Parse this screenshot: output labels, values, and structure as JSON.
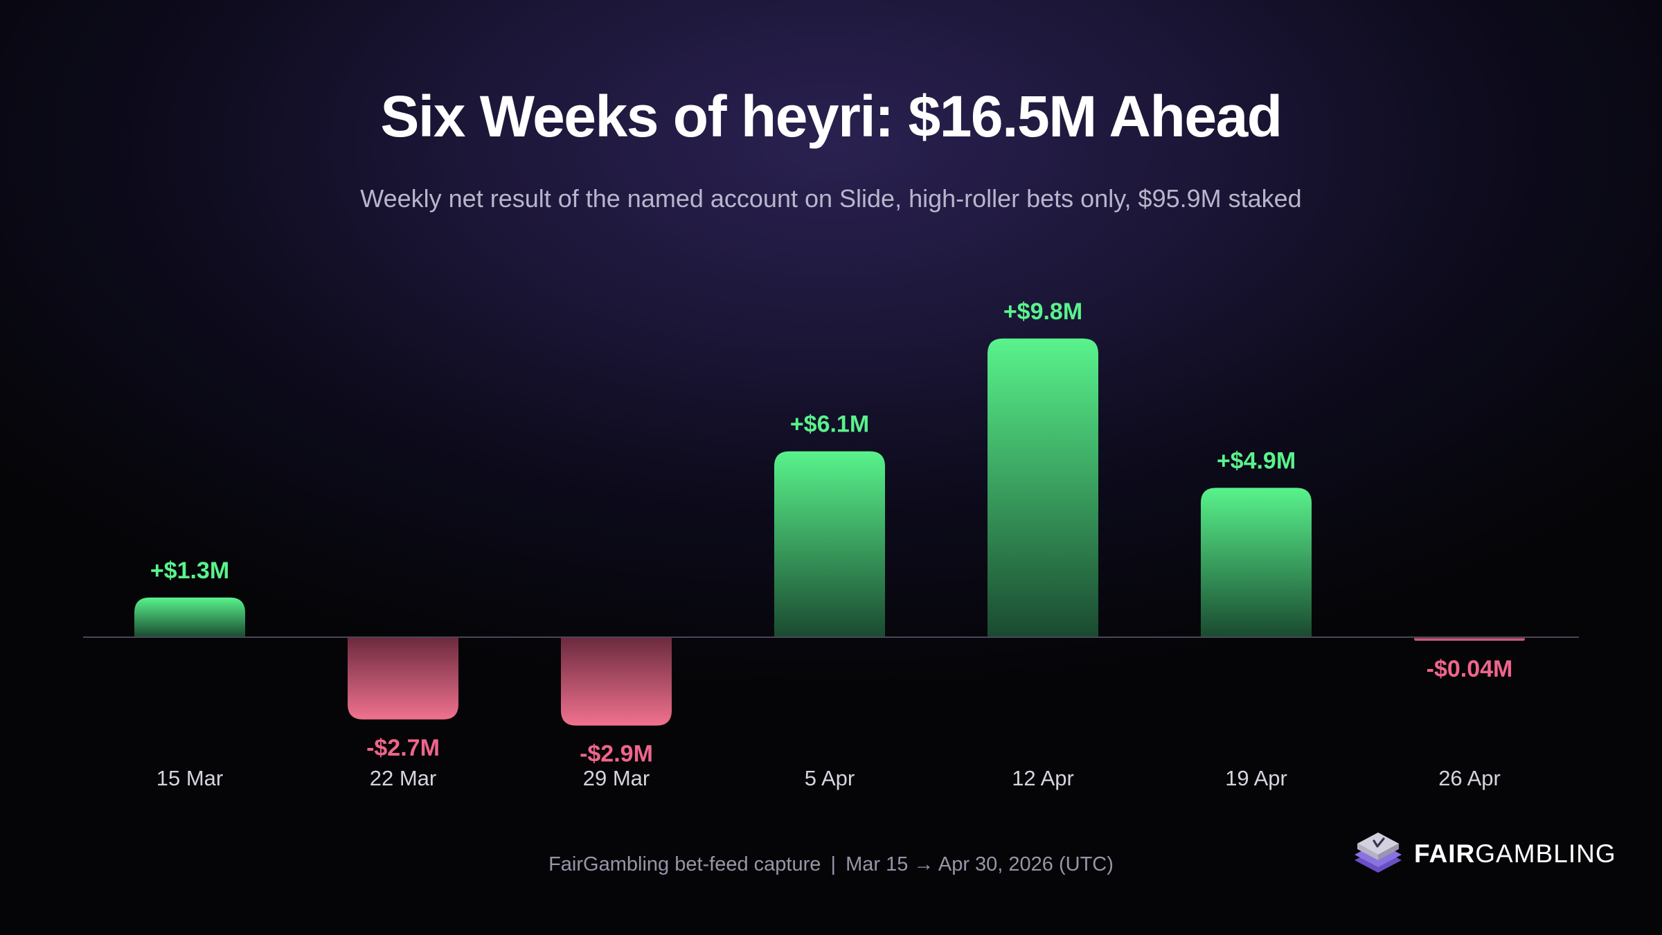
{
  "title": "Six Weeks of heyri: $16.5M Ahead",
  "subtitle": "Weekly net result of the named account on Slide, high-roller bets only, $95.9M staked",
  "footer": {
    "source": "FairGambling bet-feed capture",
    "separator": "|",
    "range": "Mar 15 → Apr 30, 2026 (UTC)"
  },
  "brand": {
    "name_bold": "FAIR",
    "name_regular": "GAMBLING",
    "icon": "fairgambling-logo-icon"
  },
  "colors": {
    "positive": "#59f38c",
    "negative": "#f0658c",
    "positive_bar_top": "#59f38c",
    "positive_bar_bottom": "#1a4a30",
    "negative_bar_top": "#6b2a3e",
    "negative_bar_bottom": "#f0728f"
  },
  "chart_data": {
    "type": "bar",
    "categories": [
      "15 Mar",
      "22 Mar",
      "29 Mar",
      "5 Apr",
      "12 Apr",
      "19 Apr",
      "26 Apr"
    ],
    "values": [
      1.3,
      -2.7,
      -2.9,
      6.1,
      9.8,
      4.9,
      -0.04
    ],
    "data_labels": [
      "+$1.3M",
      "-$2.7M",
      "-$2.9M",
      "+$6.1M",
      "+$9.8M",
      "+$4.9M",
      "-$0.04M"
    ],
    "unit": "$M",
    "title": "Six Weeks of heyri: $16.5M Ahead",
    "xlabel": "",
    "ylabel": "",
    "ylim": [
      -2.9,
      9.8
    ],
    "grid": false,
    "baseline": 0
  }
}
